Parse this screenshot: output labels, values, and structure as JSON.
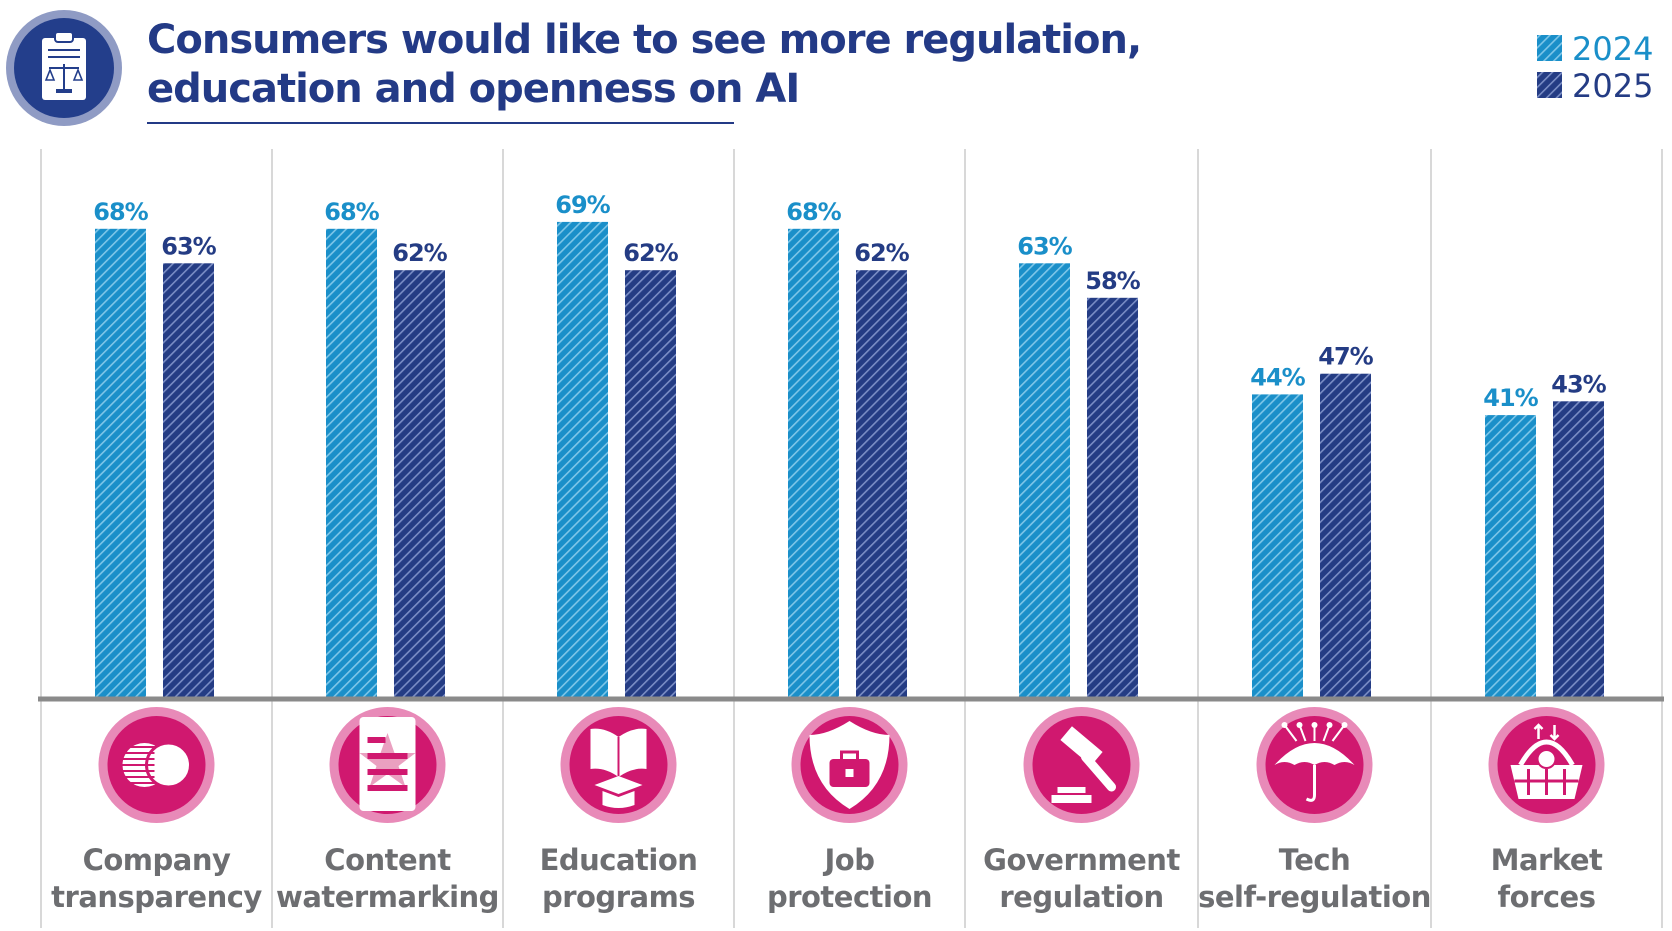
{
  "chart_data": {
    "type": "bar",
    "title": "Consumers would like to see more regulation, education and openness on AI",
    "title_lines": [
      "Consumers would like to see more regulation,",
      "education and openness on AI"
    ],
    "categories": [
      "Company transparency",
      "Content watermarking",
      "Education programs",
      "Job protection",
      "Government regulation",
      "Tech self-regulation",
      "Market forces"
    ],
    "category_lines": [
      [
        "Company",
        "transparency"
      ],
      [
        "Content",
        "watermarking"
      ],
      [
        "Education",
        "programs"
      ],
      [
        "Job",
        "protection"
      ],
      [
        "Government",
        "regulation"
      ],
      [
        "Tech",
        "self-regulation"
      ],
      [
        "Market",
        "forces"
      ]
    ],
    "category_icons": [
      "venn-coins-icon",
      "watermark-document-icon",
      "book-graduation-cap-icon",
      "shield-briefcase-icon",
      "gavel-icon",
      "umbrella-circuit-icon",
      "shopping-basket-icon"
    ],
    "series": [
      {
        "name": "2024",
        "values": [
          68,
          68,
          69,
          68,
          63,
          44,
          41
        ],
        "labels": [
          "68%",
          "68%",
          "69%",
          "68%",
          "63%",
          "44%",
          "41%"
        ],
        "color": "#1a8fc9"
      },
      {
        "name": "2025",
        "values": [
          63,
          62,
          62,
          62,
          58,
          47,
          43
        ],
        "labels": [
          "63%",
          "62%",
          "62%",
          "62%",
          "58%",
          "47%",
          "43%"
        ],
        "color": "#243c84"
      }
    ],
    "unit": "%",
    "ylim": [
      0,
      100
    ],
    "grid": false,
    "legend_position": "top-right",
    "bar_pattern": "diagonal-hatch",
    "header_icon": "clipboard-scales-icon",
    "colors": {
      "title": "#233a86",
      "icon_pink": "#d0186f",
      "icon_ring": "#e88ab8",
      "label_gray": "#6d6e71"
    }
  }
}
